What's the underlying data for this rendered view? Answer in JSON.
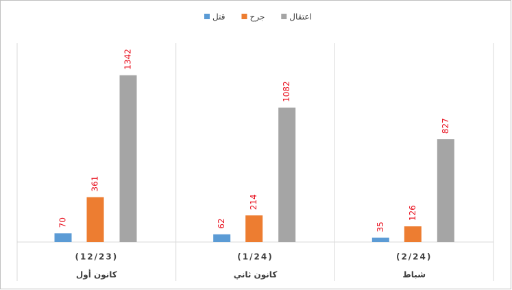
{
  "chart_data": {
    "type": "bar",
    "categories": [
      [
        "(12/23)",
        "كانون أول"
      ],
      [
        "(1/24)",
        "كانون ثاني"
      ],
      [
        "(2/24)",
        "شباط"
      ]
    ],
    "series": [
      {
        "name": "قتل",
        "color": "#5b9bd5",
        "values": [
          70,
          62,
          35
        ]
      },
      {
        "name": "جرح",
        "color": "#ed7d31",
        "values": [
          361,
          214,
          126
        ]
      },
      {
        "name": "اعتقال",
        "color": "#a5a5a5",
        "values": [
          1342,
          1082,
          827
        ]
      }
    ],
    "ylim": [
      0,
      1600
    ],
    "label_color": "#e8101e"
  }
}
